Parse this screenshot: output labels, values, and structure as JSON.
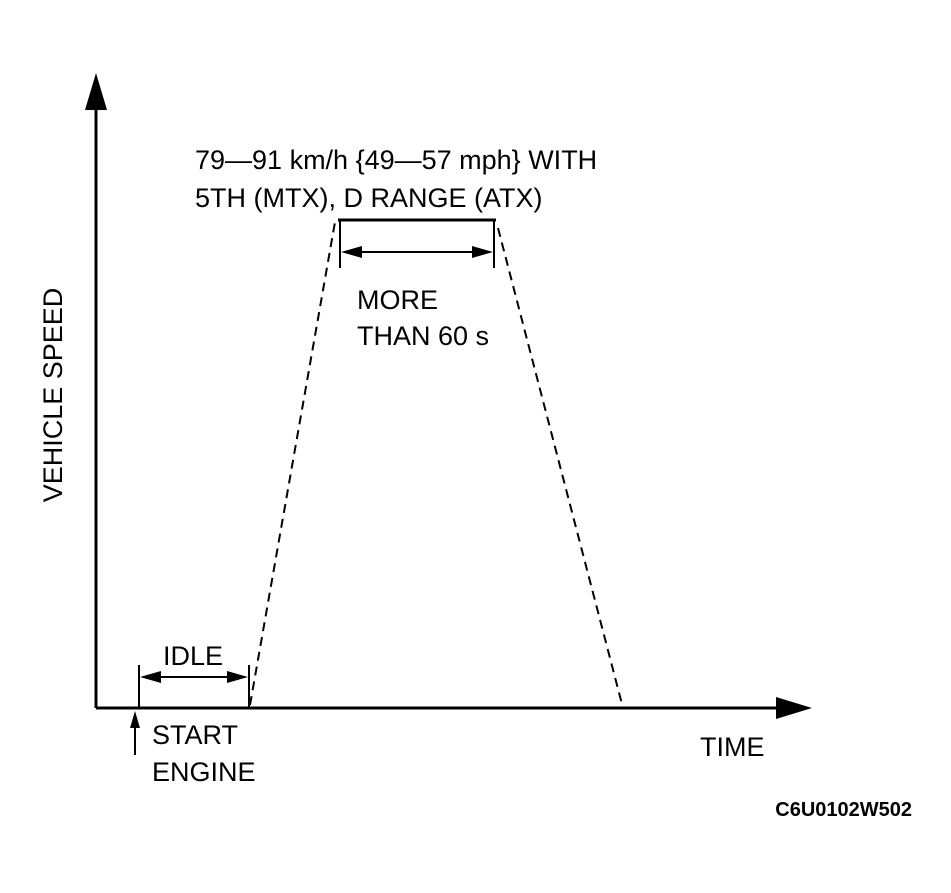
{
  "axes": {
    "y_label": "VEHICLE SPEED",
    "x_label": "TIME"
  },
  "annotations": {
    "speed": [
      "79—91 km/h {49—57 mph} WITH",
      "5TH (MTX), D RANGE (ATX)"
    ],
    "duration": [
      "MORE",
      "THAN 60 s"
    ],
    "idle": "IDLE",
    "start": [
      "START",
      "ENGINE"
    ]
  },
  "figure_id": "C6U0102W502"
}
